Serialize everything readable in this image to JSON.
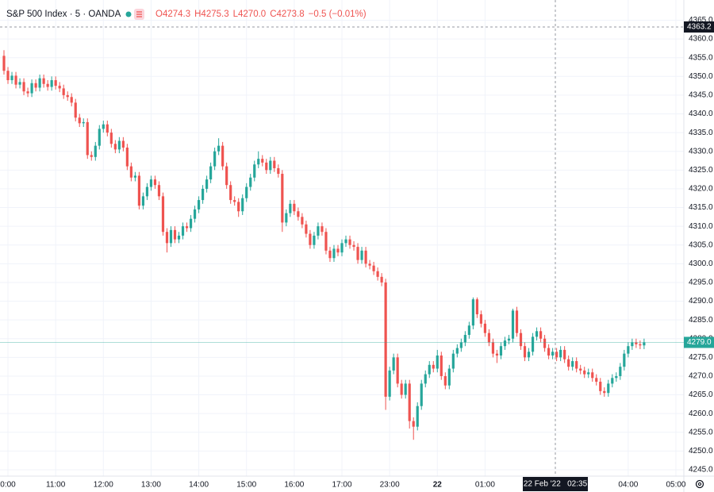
{
  "chart_data": {
    "type": "candlestick",
    "title": "S&P 500 Index · 5 · OANDA",
    "ohlc_legend": [
      "O4274.3",
      "H4275.3",
      "L4270.0",
      "C4273.8",
      "−0.5 (−0.01%)"
    ],
    "up_color": "#26a69a",
    "down_color": "#ef5350",
    "grid": true,
    "ylim": [
      4243.3,
      4370.4
    ],
    "yticks": [
      {
        "value": 4245,
        "label": "4245.0"
      },
      {
        "value": 4250,
        "label": "4250.0"
      },
      {
        "value": 4255,
        "label": "4255.0"
      },
      {
        "value": 4260,
        "label": "4260.0"
      },
      {
        "value": 4265,
        "label": "4265.0"
      },
      {
        "value": 4270,
        "label": "4270.0"
      },
      {
        "value": 4275,
        "label": "4275.0"
      },
      {
        "value": 4280,
        "label": "4280.0"
      },
      {
        "value": 4285,
        "label": "4285.0"
      },
      {
        "value": 4290,
        "label": "4290.0"
      },
      {
        "value": 4295,
        "label": "4295.0"
      },
      {
        "value": 4300,
        "label": "4300.0"
      },
      {
        "value": 4305,
        "label": "4305.0"
      },
      {
        "value": 4310,
        "label": "4310.0"
      },
      {
        "value": 4315,
        "label": "4315.0"
      },
      {
        "value": 4320,
        "label": "4320.0"
      },
      {
        "value": 4325,
        "label": "4325.0"
      },
      {
        "value": 4330,
        "label": "4330.0"
      },
      {
        "value": 4335,
        "label": "4335.0"
      },
      {
        "value": 4340,
        "label": "4340.0"
      },
      {
        "value": 4345,
        "label": "4345.0"
      },
      {
        "value": 4350,
        "label": "4350.0"
      },
      {
        "value": 4355,
        "label": "4355.0"
      },
      {
        "value": 4360,
        "label": "4360.0"
      },
      {
        "value": 4365,
        "label": "4365.0"
      }
    ],
    "xlim": [
      -1,
      171
    ],
    "xticks": [
      {
        "value": 1,
        "label": "0:00"
      },
      {
        "value": 13,
        "label": "11:00"
      },
      {
        "value": 25,
        "label": "12:00"
      },
      {
        "value": 37,
        "label": "13:00"
      },
      {
        "value": 49,
        "label": "14:00"
      },
      {
        "value": 61,
        "label": "15:00"
      },
      {
        "value": 73,
        "label": "16:00"
      },
      {
        "value": 85,
        "label": "17:00"
      },
      {
        "value": 97,
        "label": "23:00"
      },
      {
        "value": 109,
        "label": "22"
      },
      {
        "value": 121,
        "label": "01:00"
      },
      {
        "value": 157,
        "label": "04:00"
      },
      {
        "value": 169,
        "label": "05:00"
      }
    ],
    "last_price": {
      "value": 4279.0,
      "label": "4279.0"
    },
    "crosshair": {
      "price": {
        "value": 4363.2,
        "label": "4363.2"
      },
      "time": "22 Feb '22   02:35"
    },
    "open": [
      4355.5,
      4351.5,
      4349.0,
      4350.2,
      4347.8,
      4348.5,
      4346.0,
      4345.5,
      4348.2,
      4347.0,
      4349.5,
      4348.0,
      4347.2,
      4349.0,
      4347.5,
      4346.8,
      4345.0,
      4344.5,
      4343.0,
      4339.0,
      4337.5,
      4337.8,
      4329.0,
      4328.5,
      4331.5,
      4336.0,
      4337.2,
      4335.0,
      4332.0,
      4330.5,
      4332.8,
      4331.0,
      4326.0,
      4323.0,
      4323.5,
      4315.5,
      4318.0,
      4320.5,
      4322.5,
      4321.0,
      4318.0,
      4308.5,
      4305.5,
      4309.0,
      4306.5,
      4307.5,
      4310.0,
      4309.5,
      4312.0,
      4314.5,
      4317.0,
      4320.0,
      4322.5,
      4326.0,
      4330.0,
      4331.5,
      4326.0,
      4321.0,
      4317.0,
      4316.5,
      4314.0,
      4317.5,
      4320.5,
      4323.0,
      4326.5,
      4328.0,
      4327.0,
      4325.0,
      4327.5,
      4325.5,
      4324.0,
      4311.0,
      4313.5,
      4316.0,
      4314.0,
      4312.5,
      4310.5,
      4308.0,
      4305.0,
      4307.5,
      4310.0,
      4308.5,
      4303.5,
      4301.5,
      4304.0,
      4303.0,
      4305.5,
      4306.5,
      4305.0,
      4304.5,
      4301.0,
      4303.5,
      4300.0,
      4299.5,
      4298.0,
      4296.5,
      4295.0,
      4264.5,
      4271.5,
      4275.0,
      4268.0,
      4265.0,
      4268.0,
      4258.0,
      4256.5,
      4262.0,
      4268.0,
      4270.5,
      4273.0,
      4272.0,
      4275.5,
      4270.0,
      4267.5,
      4272.0,
      4276.0,
      4277.5,
      4279.0,
      4281.0,
      4283.5,
      4290.5,
      4286.5,
      4284.0,
      4281.5,
      4279.0,
      4276.0,
      4275.5,
      4278.0,
      4279.5,
      4280.0,
      4287.5,
      4281.5,
      4278.0,
      4275.0,
      4276.5,
      4280.5,
      4282.0,
      4280.0,
      4277.5,
      4275.5,
      4276.5,
      4275.0,
      4277.0,
      4274.5,
      4272.5,
      4274.0,
      4272.0,
      4271.5,
      4270.5,
      4271.0,
      4269.5,
      4268.5,
      4266.0,
      4265.5,
      4268.0,
      4269.5,
      4270.0,
      4272.5,
      4276.0,
      4278.0,
      4279.0,
      4278.5,
      4278.2
    ],
    "high": [
      4357.0,
      4352.5,
      4351.2,
      4351.2,
      4349.5,
      4349.5,
      4347.0,
      4349.2,
      4349.2,
      4350.5,
      4350.5,
      4349.0,
      4350.0,
      4350.0,
      4348.5,
      4347.8,
      4346.0,
      4345.5,
      4344.0,
      4340.0,
      4338.8,
      4338.8,
      4330.0,
      4332.5,
      4337.0,
      4338.2,
      4338.2,
      4336.0,
      4333.0,
      4333.8,
      4333.8,
      4332.0,
      4327.0,
      4324.5,
      4324.5,
      4319.0,
      4321.5,
      4323.5,
      4323.5,
      4322.0,
      4319.0,
      4309.5,
      4310.0,
      4310.0,
      4308.5,
      4311.0,
      4311.0,
      4313.0,
      4315.5,
      4318.0,
      4321.0,
      4323.5,
      4327.0,
      4331.0,
      4333.5,
      4332.5,
      4327.0,
      4322.0,
      4318.0,
      4317.5,
      4318.5,
      4321.5,
      4324.0,
      4327.5,
      4330.0,
      4329.0,
      4328.0,
      4328.5,
      4328.5,
      4326.5,
      4325.0,
      4314.5,
      4317.0,
      4317.0,
      4315.0,
      4313.5,
      4311.5,
      4309.0,
      4308.5,
      4311.0,
      4311.0,
      4309.5,
      4304.5,
      4305.0,
      4305.0,
      4306.5,
      4307.5,
      4307.5,
      4306.0,
      4305.5,
      4304.5,
      4304.5,
      4301.0,
      4300.5,
      4299.0,
      4297.5,
      4296.0,
      4272.5,
      4276.0,
      4276.0,
      4269.0,
      4269.0,
      4269.0,
      4259.0,
      4263.0,
      4269.0,
      4271.5,
      4274.0,
      4274.0,
      4277.0,
      4276.5,
      4271.0,
      4273.0,
      4277.0,
      4278.5,
      4280.0,
      4282.0,
      4284.5,
      4291.0,
      4291.0,
      4287.5,
      4285.0,
      4282.5,
      4280.0,
      4277.0,
      4279.0,
      4280.5,
      4281.0,
      4288.0,
      4288.5,
      4282.5,
      4279.0,
      4277.5,
      4281.5,
      4283.0,
      4283.0,
      4281.0,
      4278.5,
      4277.5,
      4277.5,
      4278.0,
      4278.0,
      4275.5,
      4275.0,
      4275.0,
      4273.0,
      4272.5,
      4272.0,
      4272.0,
      4270.5,
      4269.5,
      4267.0,
      4269.0,
      4270.5,
      4271.0,
      4273.5,
      4277.0,
      4279.0,
      4280.0,
      4280.0,
      4279.5,
      4280.0
    ],
    "low": [
      4350.5,
      4348.0,
      4348.0,
      4346.8,
      4346.8,
      4345.0,
      4344.5,
      4344.5,
      4346.0,
      4346.0,
      4347.0,
      4346.2,
      4346.2,
      4346.5,
      4345.8,
      4344.0,
      4343.5,
      4342.0,
      4338.0,
      4336.5,
      4336.5,
      4328.0,
      4327.5,
      4327.5,
      4330.5,
      4335.0,
      4334.0,
      4331.0,
      4329.5,
      4329.5,
      4330.0,
      4325.0,
      4322.0,
      4322.0,
      4314.5,
      4314.5,
      4317.0,
      4319.5,
      4320.0,
      4317.0,
      4307.5,
      4303.0,
      4304.5,
      4305.5,
      4305.5,
      4306.5,
      4308.5,
      4308.5,
      4311.0,
      4313.5,
      4316.0,
      4319.0,
      4321.5,
      4325.0,
      4329.0,
      4325.0,
      4320.0,
      4316.0,
      4315.5,
      4312.5,
      4313.0,
      4316.5,
      4319.5,
      4322.0,
      4325.5,
      4326.0,
      4324.0,
      4324.0,
      4324.5,
      4323.0,
      4308.5,
      4310.0,
      4312.5,
      4313.0,
      4311.5,
      4309.5,
      4307.0,
      4304.0,
      4304.0,
      4306.5,
      4307.5,
      4302.5,
      4300.5,
      4300.5,
      4302.0,
      4302.0,
      4304.5,
      4304.0,
      4303.5,
      4300.0,
      4300.0,
      4299.0,
      4298.5,
      4297.0,
      4295.5,
      4294.0,
      4261.0,
      4263.5,
      4270.5,
      4267.0,
      4264.0,
      4264.0,
      4256.0,
      4253.0,
      4255.5,
      4261.0,
      4267.0,
      4269.5,
      4271.0,
      4271.0,
      4269.0,
      4266.5,
      4266.5,
      4271.0,
      4275.0,
      4276.5,
      4278.0,
      4280.0,
      4282.5,
      4285.5,
      4283.0,
      4280.5,
      4278.0,
      4275.0,
      4273.5,
      4274.5,
      4277.0,
      4278.5,
      4279.0,
      4280.5,
      4277.0,
      4274.0,
      4274.0,
      4275.5,
      4279.5,
      4279.0,
      4276.5,
      4274.5,
      4274.5,
      4274.0,
      4274.0,
      4273.5,
      4271.5,
      4271.5,
      4271.0,
      4270.5,
      4269.5,
      4269.5,
      4268.5,
      4267.5,
      4265.0,
      4264.5,
      4264.5,
      4267.0,
      4268.5,
      4269.0,
      4271.5,
      4275.0,
      4277.0,
      4277.5,
      4277.2,
      4277.2
    ],
    "close": [
      4351.5,
      4349.0,
      4350.2,
      4347.8,
      4348.5,
      4346.0,
      4345.5,
      4348.2,
      4347.0,
      4349.5,
      4348.0,
      4347.2,
      4349.0,
      4347.5,
      4346.8,
      4345.0,
      4344.5,
      4343.0,
      4339.0,
      4337.5,
      4337.8,
      4329.0,
      4328.5,
      4331.5,
      4336.0,
      4337.2,
      4335.0,
      4332.0,
      4330.5,
      4332.8,
      4331.0,
      4326.0,
      4323.0,
      4323.5,
      4315.5,
      4318.0,
      4320.5,
      4322.5,
      4321.0,
      4318.0,
      4308.5,
      4305.5,
      4309.0,
      4306.5,
      4307.5,
      4310.0,
      4309.5,
      4312.0,
      4314.5,
      4317.0,
      4320.0,
      4322.5,
      4326.0,
      4330.0,
      4331.5,
      4326.0,
      4321.0,
      4317.0,
      4316.5,
      4314.0,
      4317.5,
      4320.5,
      4323.0,
      4326.5,
      4328.0,
      4327.0,
      4325.0,
      4327.5,
      4325.5,
      4324.0,
      4311.0,
      4313.5,
      4316.0,
      4314.0,
      4312.5,
      4310.5,
      4308.0,
      4305.0,
      4307.5,
      4310.0,
      4308.5,
      4303.5,
      4301.5,
      4304.0,
      4303.0,
      4305.5,
      4306.5,
      4305.0,
      4304.5,
      4301.0,
      4303.5,
      4300.0,
      4299.5,
      4298.0,
      4296.5,
      4295.0,
      4264.5,
      4271.5,
      4275.0,
      4268.0,
      4265.0,
      4268.0,
      4258.0,
      4256.5,
      4262.0,
      4268.0,
      4270.5,
      4273.0,
      4272.0,
      4275.5,
      4270.0,
      4267.5,
      4272.0,
      4276.0,
      4277.5,
      4279.0,
      4281.0,
      4283.5,
      4290.5,
      4286.5,
      4284.0,
      4281.5,
      4279.0,
      4276.0,
      4275.5,
      4278.0,
      4279.5,
      4280.0,
      4287.5,
      4281.5,
      4278.0,
      4275.0,
      4276.5,
      4280.5,
      4282.0,
      4280.0,
      4277.5,
      4275.5,
      4276.5,
      4275.0,
      4277.0,
      4274.5,
      4272.5,
      4274.0,
      4272.0,
      4271.5,
      4270.5,
      4271.0,
      4269.5,
      4268.5,
      4266.0,
      4265.5,
      4268.0,
      4269.5,
      4270.0,
      4272.5,
      4276.0,
      4278.0,
      4279.0,
      4278.5,
      4278.2,
      4279.0
    ]
  }
}
